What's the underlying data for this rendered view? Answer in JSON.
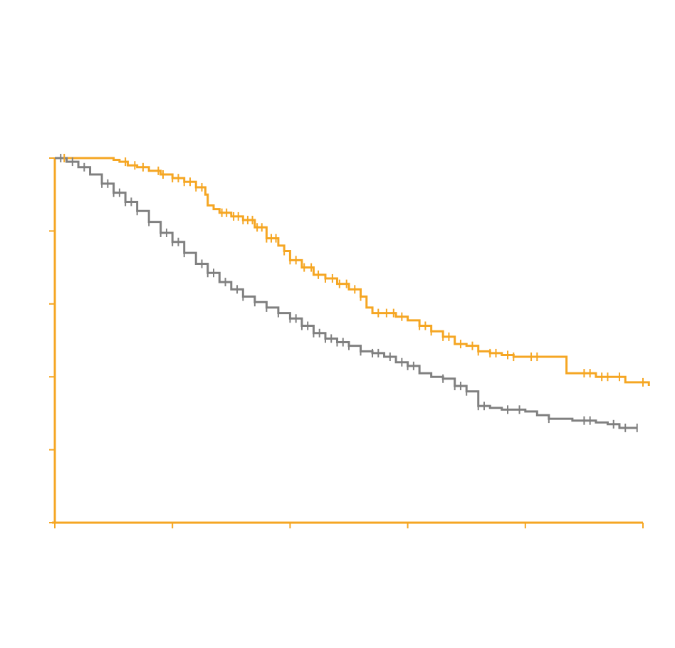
{
  "chart_data": {
    "type": "line",
    "subtype": "kaplan-meier",
    "title": "",
    "xlabel": "",
    "ylabel": "",
    "xlim": [
      0,
      5
    ],
    "ylim": [
      0,
      1
    ],
    "x_ticks": [
      0,
      1,
      2,
      3,
      4,
      5
    ],
    "y_ticks": [
      0,
      0.2,
      0.4,
      0.6,
      0.8,
      1.0
    ],
    "tick_labels_visible": false,
    "grid": false,
    "legend": "none",
    "colors": {
      "axis": "#F5A623",
      "series_orange": "#F5A623",
      "series_gray": "#808080"
    },
    "series": [
      {
        "color": "#F5A623",
        "x": [
          0,
          0.45,
          0.5,
          0.55,
          0.62,
          0.7,
          0.8,
          0.9,
          1.0,
          1.1,
          1.2,
          1.28,
          1.3,
          1.35,
          1.4,
          1.5,
          1.6,
          1.7,
          1.8,
          1.9,
          1.95,
          2.0,
          2.1,
          2.2,
          2.3,
          2.4,
          2.5,
          2.6,
          2.65,
          2.7,
          2.8,
          2.9,
          3.0,
          3.1,
          3.2,
          3.3,
          3.4,
          3.5,
          3.6,
          3.7,
          3.8,
          3.9,
          4.0,
          4.3,
          4.35,
          4.6,
          4.85,
          5.05
        ],
        "y": [
          1.0,
          1.0,
          0.995,
          0.99,
          0.98,
          0.975,
          0.965,
          0.955,
          0.945,
          0.935,
          0.92,
          0.9,
          0.87,
          0.86,
          0.85,
          0.84,
          0.83,
          0.81,
          0.78,
          0.76,
          0.745,
          0.72,
          0.7,
          0.68,
          0.67,
          0.655,
          0.64,
          0.62,
          0.59,
          0.575,
          0.575,
          0.565,
          0.555,
          0.54,
          0.525,
          0.51,
          0.49,
          0.485,
          0.47,
          0.465,
          0.46,
          0.455,
          0.455,
          0.455,
          0.41,
          0.4,
          0.385,
          0.375
        ]
      },
      {
        "color": "#808080",
        "x": [
          0,
          0.1,
          0.2,
          0.3,
          0.4,
          0.5,
          0.6,
          0.7,
          0.8,
          0.9,
          1.0,
          1.1,
          1.2,
          1.3,
          1.4,
          1.5,
          1.6,
          1.7,
          1.8,
          1.9,
          2.0,
          2.1,
          2.2,
          2.3,
          2.4,
          2.5,
          2.6,
          2.7,
          2.8,
          2.9,
          3.0,
          3.1,
          3.2,
          3.3,
          3.4,
          3.5,
          3.6,
          3.7,
          3.8,
          3.9,
          4.0,
          4.1,
          4.2,
          4.4,
          4.6,
          4.7,
          4.8,
          4.95
        ],
        "y": [
          1.0,
          0.99,
          0.975,
          0.955,
          0.93,
          0.905,
          0.88,
          0.855,
          0.825,
          0.795,
          0.77,
          0.74,
          0.71,
          0.685,
          0.66,
          0.64,
          0.62,
          0.605,
          0.59,
          0.575,
          0.56,
          0.54,
          0.52,
          0.505,
          0.495,
          0.485,
          0.47,
          0.465,
          0.455,
          0.44,
          0.43,
          0.41,
          0.4,
          0.395,
          0.375,
          0.36,
          0.32,
          0.315,
          0.31,
          0.31,
          0.305,
          0.295,
          0.285,
          0.28,
          0.275,
          0.27,
          0.26,
          0.26
        ]
      }
    ],
    "censor_marks": [
      {
        "series": 0,
        "x": [
          0.08,
          0.6,
          0.68,
          0.75,
          0.88,
          0.92,
          1.0,
          1.05,
          1.1,
          1.15,
          1.2,
          1.25,
          1.42,
          1.46,
          1.52,
          1.56,
          1.6,
          1.64,
          1.68,
          1.72,
          1.76,
          1.8,
          1.84,
          1.88,
          1.95,
          2.0,
          2.05,
          2.12,
          2.18,
          2.24,
          2.3,
          2.36,
          2.42,
          2.48,
          2.55,
          2.6,
          2.75,
          2.82,
          2.88,
          2.95,
          3.1,
          3.15,
          3.2,
          3.3,
          3.35,
          3.45,
          3.55,
          3.6,
          3.7,
          3.75,
          3.85,
          3.9,
          4.05,
          4.1,
          4.5,
          4.55,
          4.65,
          4.7,
          4.8,
          5.0
        ]
      },
      {
        "series": 1,
        "x": [
          0.05,
          0.15,
          0.25,
          0.4,
          0.45,
          0.5,
          0.55,
          0.6,
          0.65,
          0.7,
          0.8,
          0.9,
          0.95,
          1.0,
          1.05,
          1.1,
          1.25,
          1.3,
          1.35,
          1.45,
          1.55,
          1.6,
          1.7,
          1.8,
          1.9,
          2.0,
          2.05,
          2.1,
          2.15,
          2.2,
          2.25,
          2.3,
          2.35,
          2.4,
          2.45,
          2.5,
          2.6,
          2.7,
          2.75,
          2.85,
          2.95,
          3.0,
          3.05,
          3.3,
          3.4,
          3.45,
          3.5,
          3.6,
          3.65,
          3.85,
          3.95,
          4.2,
          4.5,
          4.55,
          4.75,
          4.85,
          4.95
        ]
      }
    ]
  }
}
